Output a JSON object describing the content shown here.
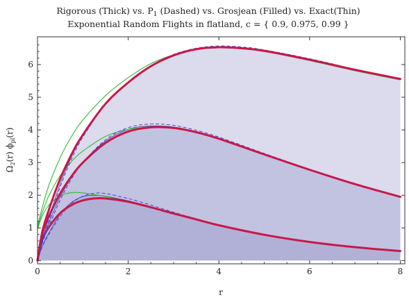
{
  "chart_data": {
    "type": "line",
    "title_line1": "Rigorous (Thick) vs. P",
    "title_sub1": "1",
    "title_line1b": " (Dashed) vs. Grosjean (Filled) vs. Exact(Thin)",
    "title_line2": "Exponential Random Flights in flatland, c = { 0.9, 0.975, 0.99 }",
    "xlabel": "r",
    "ylabel_main": "Ω",
    "ylabel_sub1": "2",
    "ylabel_mid": "(r) ϕ",
    "ylabel_sub2": "pl",
    "ylabel_end": "(r)",
    "xlim": [
      0,
      8.1
    ],
    "ylim": [
      -0.1,
      6.85
    ],
    "xticks": [
      "0",
      "2",
      "4",
      "6",
      "8"
    ],
    "xtick_values": [
      0,
      2,
      4,
      6,
      8
    ],
    "yticks": [
      "0",
      "1",
      "2",
      "3",
      "4",
      "5",
      "6"
    ],
    "ytick_values": [
      0,
      1,
      2,
      3,
      4,
      5,
      6
    ],
    "colors": {
      "rigorous": "#c8184a",
      "p1": "#4444cc",
      "grosjean_line": "#3a3aa0",
      "exact": "#33bb33",
      "fill": "#8e8ec8"
    },
    "series": [
      {
        "c": 0.9,
        "rigorous": {
          "x": [
            0,
            0.1,
            0.25,
            0.5,
            0.75,
            1,
            1.25,
            1.5,
            2,
            2.5,
            3,
            3.5,
            4,
            5,
            6,
            7,
            8
          ],
          "y": [
            0,
            0.62,
            1.02,
            1.45,
            1.7,
            1.84,
            1.9,
            1.9,
            1.8,
            1.63,
            1.44,
            1.26,
            1.08,
            0.79,
            0.57,
            0.41,
            0.29
          ]
        },
        "p1": {
          "x": [
            0,
            0.1,
            0.25,
            0.5,
            0.75,
            1,
            1.25,
            1.5,
            2,
            2.5,
            3,
            3.5,
            4,
            5,
            6,
            7,
            8
          ],
          "y": [
            0,
            0.4,
            0.8,
            1.35,
            1.75,
            1.97,
            2.06,
            2.05,
            1.9,
            1.7,
            1.48,
            1.28,
            1.1,
            0.8,
            0.57,
            0.41,
            0.29
          ]
        },
        "grosjean": {
          "x": [
            0,
            0.1,
            0.25,
            0.5,
            0.75,
            1,
            1.25,
            1.5,
            2,
            2.5,
            3,
            3.5,
            4,
            5,
            6,
            7,
            8
          ],
          "y": [
            0,
            0.42,
            0.85,
            1.42,
            1.78,
            1.96,
            2.0,
            1.97,
            1.83,
            1.65,
            1.45,
            1.27,
            1.09,
            0.79,
            0.57,
            0.41,
            0.29
          ]
        },
        "exact": {
          "x": [
            0,
            0.1,
            0.25,
            0.5,
            0.75,
            1,
            1.25,
            1.5,
            2,
            2.5,
            3,
            3.5,
            4,
            5,
            6,
            7,
            8
          ],
          "y": [
            0.95,
            1.35,
            1.7,
            1.98,
            2.08,
            2.07,
            2.02,
            1.96,
            1.8,
            1.62,
            1.43,
            1.25,
            1.08,
            0.79,
            0.57,
            0.41,
            0.29
          ]
        }
      },
      {
        "c": 0.975,
        "rigorous": {
          "x": [
            0,
            0.1,
            0.25,
            0.5,
            0.75,
            1,
            1.5,
            2,
            2.5,
            3,
            3.5,
            4,
            5,
            6,
            7,
            8
          ],
          "y": [
            0,
            0.78,
            1.35,
            2.05,
            2.58,
            3.0,
            3.6,
            3.95,
            4.08,
            4.06,
            3.93,
            3.73,
            3.25,
            2.78,
            2.34,
            1.95
          ]
        },
        "p1": {
          "x": [
            0,
            0.1,
            0.25,
            0.5,
            0.75,
            1,
            1.5,
            2,
            2.5,
            3,
            3.5,
            4,
            5,
            6,
            7,
            8
          ],
          "y": [
            0,
            0.5,
            1.05,
            1.85,
            2.5,
            3.0,
            3.7,
            4.07,
            4.18,
            4.14,
            3.99,
            3.78,
            3.28,
            2.8,
            2.36,
            1.97
          ]
        },
        "grosjean": {
          "x": [
            0,
            0.1,
            0.25,
            0.5,
            0.75,
            1,
            1.5,
            2,
            2.5,
            3,
            3.5,
            4,
            5,
            6,
            7,
            8
          ],
          "y": [
            0,
            0.55,
            1.15,
            1.95,
            2.55,
            3.02,
            3.66,
            4.02,
            4.12,
            4.09,
            3.95,
            3.75,
            3.26,
            2.79,
            2.35,
            1.96
          ]
        },
        "exact": {
          "x": [
            0,
            0.1,
            0.25,
            0.5,
            0.75,
            1,
            1.5,
            2,
            2.5,
            3,
            3.5,
            4,
            5,
            6,
            7,
            8
          ],
          "y": [
            1.0,
            1.45,
            1.98,
            2.6,
            3.03,
            3.35,
            3.8,
            4.02,
            4.07,
            4.04,
            3.91,
            3.72,
            3.24,
            2.77,
            2.33,
            1.94
          ]
        }
      },
      {
        "c": 0.99,
        "rigorous": {
          "x": [
            0,
            0.1,
            0.25,
            0.5,
            0.75,
            1,
            1.5,
            2,
            2.5,
            3,
            3.5,
            4,
            4.5,
            5,
            6,
            7,
            8
          ],
          "y": [
            0,
            0.85,
            1.55,
            2.5,
            3.25,
            3.85,
            4.8,
            5.45,
            5.95,
            6.28,
            6.47,
            6.53,
            6.5,
            6.42,
            6.15,
            5.84,
            5.56
          ]
        },
        "p1": {
          "x": [
            0,
            0.1,
            0.25,
            0.5,
            0.75,
            1,
            1.5,
            2,
            2.5,
            3,
            3.5,
            4,
            4.5,
            5,
            6,
            7,
            8
          ],
          "y": [
            0,
            0.55,
            1.2,
            2.25,
            3.1,
            3.78,
            4.78,
            5.46,
            5.97,
            6.31,
            6.5,
            6.57,
            6.54,
            6.45,
            6.18,
            5.86,
            5.57
          ]
        },
        "grosjean": {
          "x": [
            0,
            0.1,
            0.25,
            0.5,
            0.75,
            1,
            1.5,
            2,
            2.5,
            3,
            3.5,
            4,
            4.5,
            5,
            6,
            7,
            8
          ],
          "y": [
            0,
            0.6,
            1.3,
            2.35,
            3.18,
            3.82,
            4.8,
            5.46,
            5.96,
            6.3,
            6.49,
            6.55,
            6.52,
            6.44,
            6.17,
            5.85,
            5.56
          ]
        },
        "exact": {
          "x": [
            0,
            0.1,
            0.25,
            0.5,
            0.75,
            1,
            1.5,
            2,
            2.5,
            3,
            3.5,
            4,
            4.5,
            5,
            6,
            7,
            8
          ],
          "y": [
            1.05,
            1.6,
            2.3,
            3.15,
            3.8,
            4.3,
            5.05,
            5.6,
            6.03,
            6.3,
            6.46,
            6.51,
            6.48,
            6.4,
            6.12,
            5.81,
            5.53
          ]
        }
      }
    ]
  }
}
